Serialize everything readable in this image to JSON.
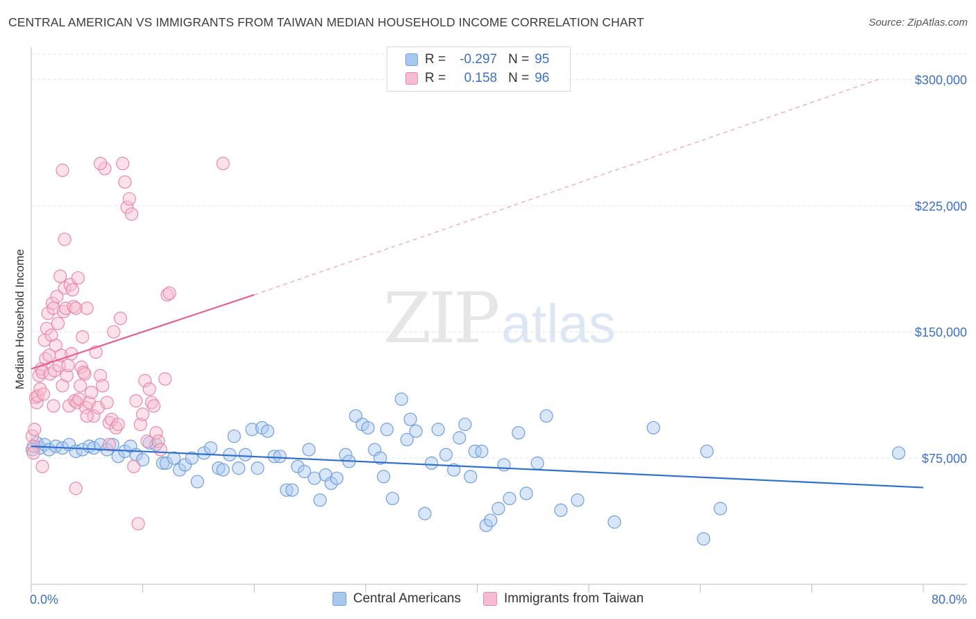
{
  "title": "CENTRAL AMERICAN VS IMMIGRANTS FROM TAIWAN MEDIAN HOUSEHOLD INCOME CORRELATION CHART",
  "source": "Source: ZipAtlas.com",
  "watermark": {
    "zip": "ZIP",
    "atlas": "atlas"
  },
  "legend": {
    "rows": [
      {
        "r_label": "R =",
        "r_value": "-0.297",
        "n_label": "N =",
        "n_value": "95",
        "color": "#a9c8f0",
        "stroke": "#6f9fdc"
      },
      {
        "r_label": "R =",
        "r_value": "0.158",
        "n_label": "N =",
        "n_value": "96",
        "color": "#f6bccf",
        "stroke": "#e889a8"
      }
    ]
  },
  "bottom_legend": [
    {
      "label": "Central Americans",
      "color": "#a9c8f0",
      "stroke": "#6f9fdc"
    },
    {
      "label": "Immigrants from Taiwan",
      "color": "#f6bccf",
      "stroke": "#e889a8"
    }
  ],
  "chart_data": {
    "type": "scatter",
    "title": "CENTRAL AMERICAN VS IMMIGRANTS FROM TAIWAN MEDIAN HOUSEHOLD INCOME CORRELATION CHART",
    "xlabel": "",
    "ylabel": "Median Household Income",
    "xlim": [
      0,
      80
    ],
    "ylim": [
      0,
      315000
    ],
    "x_tick_labels": [
      "0.0%",
      "80.0%"
    ],
    "y_ticks": [
      75000,
      150000,
      225000,
      300000
    ],
    "y_tick_labels": [
      "$75,000",
      "$150,000",
      "$225,000",
      "$300,000"
    ],
    "grid": true,
    "series": [
      {
        "name": "Central Americans",
        "color": "#a9c8f0",
        "stroke": "#6f9fdc",
        "trend": {
          "x0": 0,
          "y0": 82000,
          "x1": 80,
          "y1": 57500,
          "color": "#2f6fd0"
        },
        "points": [
          [
            0.2,
            82000
          ],
          [
            0.5,
            84000
          ],
          [
            0.8,
            81000
          ],
          [
            1.2,
            83000
          ],
          [
            1.6,
            80000
          ],
          [
            2.2,
            82000
          ],
          [
            2.8,
            81000
          ],
          [
            3.4,
            83000
          ],
          [
            4.0,
            79000
          ],
          [
            4.6,
            80000
          ],
          [
            5.2,
            82000
          ],
          [
            5.6,
            81000
          ],
          [
            6.2,
            83000
          ],
          [
            6.8,
            80000
          ],
          [
            7.3,
            83000
          ],
          [
            7.8,
            76000
          ],
          [
            8.4,
            79000
          ],
          [
            8.9,
            82000
          ],
          [
            9.4,
            77000
          ],
          [
            10.0,
            74000
          ],
          [
            10.6,
            84000
          ],
          [
            11.2,
            83000
          ],
          [
            11.8,
            72000
          ],
          [
            12.1,
            72000
          ],
          [
            12.8,
            75000
          ],
          [
            13.3,
            68000
          ],
          [
            13.8,
            71000
          ],
          [
            14.4,
            75000
          ],
          [
            14.9,
            61000
          ],
          [
            15.5,
            78000
          ],
          [
            16.1,
            81000
          ],
          [
            16.8,
            69000
          ],
          [
            17.2,
            68000
          ],
          [
            17.8,
            77000
          ],
          [
            18.2,
            88000
          ],
          [
            18.6,
            69000
          ],
          [
            19.2,
            77000
          ],
          [
            19.8,
            92000
          ],
          [
            20.3,
            69000
          ],
          [
            20.7,
            93000
          ],
          [
            21.2,
            91000
          ],
          [
            21.8,
            76000
          ],
          [
            22.3,
            76000
          ],
          [
            22.9,
            56000
          ],
          [
            23.4,
            56000
          ],
          [
            23.9,
            70000
          ],
          [
            24.5,
            67000
          ],
          [
            24.9,
            80000
          ],
          [
            25.4,
            63000
          ],
          [
            25.9,
            50000
          ],
          [
            26.4,
            65000
          ],
          [
            26.9,
            60000
          ],
          [
            27.4,
            63000
          ],
          [
            28.2,
            77000
          ],
          [
            28.5,
            73000
          ],
          [
            29.1,
            100000
          ],
          [
            29.7,
            95000
          ],
          [
            30.2,
            93000
          ],
          [
            30.8,
            80000
          ],
          [
            31.3,
            75000
          ],
          [
            31.6,
            64000
          ],
          [
            31.9,
            92000
          ],
          [
            32.4,
            51000
          ],
          [
            33.2,
            110000
          ],
          [
            33.7,
            86000
          ],
          [
            34.0,
            98000
          ],
          [
            34.5,
            91000
          ],
          [
            35.3,
            42000
          ],
          [
            35.9,
            72000
          ],
          [
            36.5,
            92000
          ],
          [
            37.2,
            77000
          ],
          [
            37.9,
            68000
          ],
          [
            38.4,
            87000
          ],
          [
            38.9,
            95000
          ],
          [
            39.4,
            64000
          ],
          [
            39.8,
            79000
          ],
          [
            40.4,
            79000
          ],
          [
            40.8,
            35000
          ],
          [
            41.2,
            38000
          ],
          [
            41.9,
            45000
          ],
          [
            42.4,
            71000
          ],
          [
            42.9,
            51000
          ],
          [
            43.7,
            90000
          ],
          [
            44.4,
            54000
          ],
          [
            45.4,
            72000
          ],
          [
            46.2,
            100000
          ],
          [
            47.5,
            44000
          ],
          [
            49.0,
            50000
          ],
          [
            52.3,
            37000
          ],
          [
            55.8,
            93000
          ],
          [
            60.3,
            27000
          ],
          [
            60.6,
            79000
          ],
          [
            61.8,
            45000
          ],
          [
            77.8,
            78000
          ],
          [
            0.1,
            80000
          ]
        ]
      },
      {
        "name": "Immigrants from Taiwan",
        "color": "#f6bccf",
        "stroke": "#e889a8",
        "trend": {
          "x0": 0,
          "y0": 128000,
          "x1": 20,
          "y1": 172000,
          "color": "#e8608e",
          "dash_x1": 76,
          "dash_y1": 300000
        },
        "points": [
          [
            0.1,
            88000
          ],
          [
            0.3,
            92000
          ],
          [
            0.4,
            111000
          ],
          [
            0.5,
            108000
          ],
          [
            0.6,
            112000
          ],
          [
            0.7,
            124000
          ],
          [
            0.8,
            116000
          ],
          [
            0.9,
            128000
          ],
          [
            1.0,
            126000
          ],
          [
            1.1,
            113000
          ],
          [
            1.2,
            145000
          ],
          [
            1.3,
            134000
          ],
          [
            1.4,
            152000
          ],
          [
            1.5,
            161000
          ],
          [
            1.6,
            136000
          ],
          [
            1.7,
            125000
          ],
          [
            1.8,
            148000
          ],
          [
            1.9,
            167000
          ],
          [
            2.0,
            164000
          ],
          [
            2.1,
            127000
          ],
          [
            2.2,
            142000
          ],
          [
            2.3,
            171000
          ],
          [
            2.4,
            155000
          ],
          [
            2.5,
            130000
          ],
          [
            2.6,
            183000
          ],
          [
            2.7,
            136000
          ],
          [
            2.8,
            118000
          ],
          [
            2.9,
            162000
          ],
          [
            3.0,
            176000
          ],
          [
            3.1,
            164000
          ],
          [
            3.2,
            124000
          ],
          [
            3.3,
            130000
          ],
          [
            3.4,
            106000
          ],
          [
            3.5,
            178000
          ],
          [
            3.6,
            137000
          ],
          [
            3.7,
            175000
          ],
          [
            3.8,
            165000
          ],
          [
            3.9,
            109000
          ],
          [
            4.0,
            164000
          ],
          [
            4.1,
            108000
          ],
          [
            4.2,
            182000
          ],
          [
            4.3,
            110000
          ],
          [
            4.4,
            118000
          ],
          [
            4.5,
            129000
          ],
          [
            4.6,
            147000
          ],
          [
            4.7,
            126000
          ],
          [
            4.8,
            125000
          ],
          [
            4.9,
            105000
          ],
          [
            5.0,
            164000
          ],
          [
            5.2,
            108000
          ],
          [
            5.4,
            114000
          ],
          [
            5.6,
            100000
          ],
          [
            5.8,
            138000
          ],
          [
            6.0,
            105000
          ],
          [
            6.2,
            124000
          ],
          [
            6.4,
            118000
          ],
          [
            6.6,
            247000
          ],
          [
            6.8,
            108000
          ],
          [
            7.0,
            96000
          ],
          [
            7.2,
            98000
          ],
          [
            7.4,
            150000
          ],
          [
            7.6,
            93000
          ],
          [
            7.8,
            95000
          ],
          [
            8.0,
            158000
          ],
          [
            8.2,
            250000
          ],
          [
            8.4,
            239000
          ],
          [
            8.6,
            224000
          ],
          [
            8.8,
            229000
          ],
          [
            9.0,
            220000
          ],
          [
            9.2,
            70000
          ],
          [
            9.4,
            109000
          ],
          [
            9.6,
            36000
          ],
          [
            9.8,
            95000
          ],
          [
            10.0,
            101000
          ],
          [
            10.2,
            121000
          ],
          [
            10.4,
            85000
          ],
          [
            10.6,
            116000
          ],
          [
            10.8,
            108000
          ],
          [
            11.0,
            106000
          ],
          [
            11.2,
            90000
          ],
          [
            11.4,
            85000
          ],
          [
            11.6,
            80000
          ],
          [
            12.0,
            122000
          ],
          [
            12.2,
            172000
          ],
          [
            12.4,
            173000
          ],
          [
            17.2,
            250000
          ],
          [
            0.2,
            82000
          ],
          [
            0.2,
            78000
          ],
          [
            3.0,
            205000
          ],
          [
            2.8,
            246000
          ],
          [
            6.2,
            250000
          ],
          [
            4.0,
            57000
          ],
          [
            5.0,
            100000
          ],
          [
            7.0,
            83000
          ],
          [
            2.0,
            106000
          ],
          [
            1.0,
            70000
          ]
        ]
      }
    ]
  }
}
